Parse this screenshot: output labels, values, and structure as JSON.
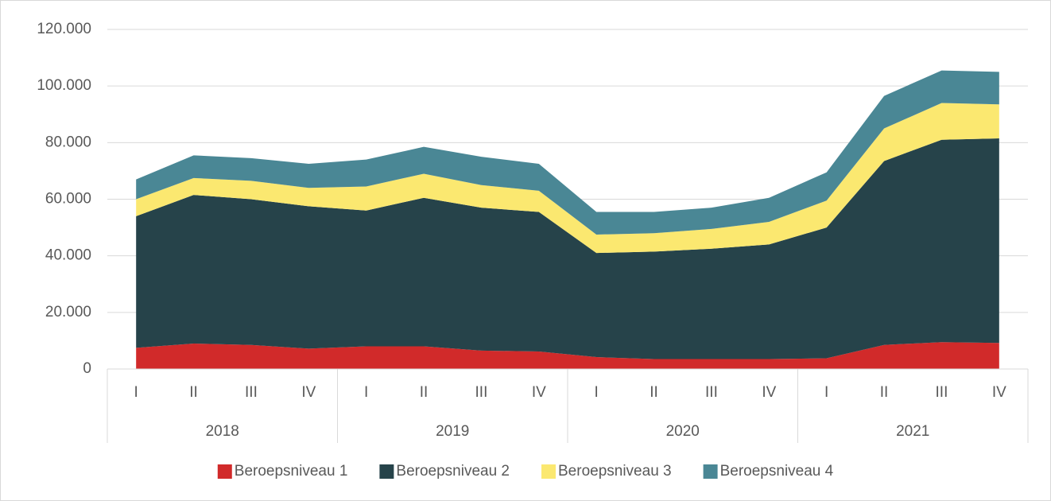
{
  "chart_data": {
    "type": "stacked_area",
    "categories": [
      "I",
      "II",
      "III",
      "IV",
      "I",
      "II",
      "III",
      "IV",
      "I",
      "II",
      "III",
      "IV",
      "I",
      "II",
      "III",
      "IV"
    ],
    "groups": [
      "2018",
      "2019",
      "2020",
      "2021"
    ],
    "series": [
      {
        "name": "Beroepsniveau 1",
        "color": "#d12a2a",
        "values": [
          7500,
          9000,
          8500,
          7200,
          8000,
          8000,
          6500,
          6200,
          4200,
          3500,
          3500,
          3500,
          3800,
          8500,
          9500,
          9200
        ]
      },
      {
        "name": "Beroepsniveau 2",
        "color": "#26434a",
        "values": [
          46500,
          52500,
          51500,
          50300,
          48000,
          52500,
          50500,
          49300,
          36800,
          38000,
          39000,
          40500,
          46200,
          65000,
          71500,
          72300
        ]
      },
      {
        "name": "Beroepsniveau 3",
        "color": "#fbe870",
        "values": [
          6000,
          6000,
          6500,
          6500,
          8500,
          8500,
          8000,
          7500,
          6500,
          6500,
          7000,
          8000,
          9500,
          11500,
          13000,
          12000
        ]
      },
      {
        "name": "Beroepsniveau 4",
        "color": "#4a8795",
        "values": [
          7000,
          8000,
          8000,
          8500,
          9500,
          9500,
          10000,
          9500,
          8000,
          7500,
          7500,
          8500,
          10000,
          11500,
          11500,
          11500
        ]
      }
    ],
    "ylim": [
      0,
      120000
    ],
    "yticks": [
      0,
      {
        "value": 20000,
        "label": "20.000"
      },
      {
        "value": 40000,
        "label": "40.000"
      },
      {
        "value": 60000,
        "label": "60.000"
      },
      {
        "value": 80000,
        "label": "80.000"
      },
      {
        "value": 100000,
        "label": "100.000"
      },
      {
        "value": 120000,
        "label": "120.000"
      }
    ],
    "grid": true,
    "legend": "bottom"
  }
}
